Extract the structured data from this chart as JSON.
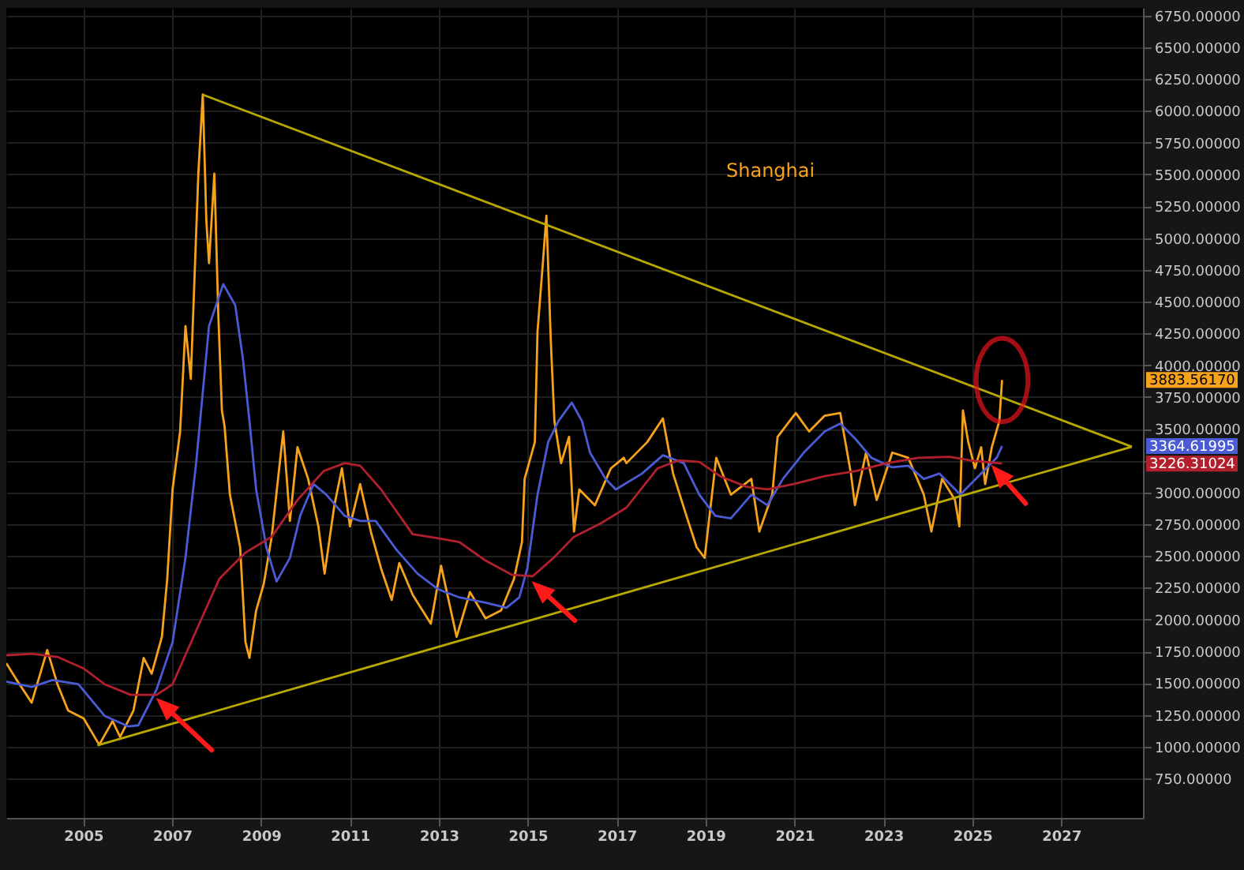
{
  "chart_data": {
    "type": "line",
    "title": "Shanghai",
    "xlim": [
      2003.27,
      2028.84
    ],
    "ylim": [
      440,
      6810
    ],
    "xticks": [
      2005,
      2007,
      2009,
      2011,
      2013,
      2015,
      2017,
      2019,
      2021,
      2023,
      2025,
      2027
    ],
    "yticks": [
      {
        "value": 750,
        "label": "750.00000"
      },
      {
        "value": 1000,
        "label": "1000.00000"
      },
      {
        "value": 1250,
        "label": "1250.00000"
      },
      {
        "value": 1500,
        "label": "1500.00000"
      },
      {
        "value": 1750,
        "label": "1750.00000"
      },
      {
        "value": 2000,
        "label": "2000.00000"
      },
      {
        "value": 2250,
        "label": "2250.00000"
      },
      {
        "value": 2500,
        "label": "2500.00000"
      },
      {
        "value": 2750,
        "label": "2750.00000"
      },
      {
        "value": 3000,
        "label": "3000.00000"
      },
      {
        "value": 3250,
        "label": null
      },
      {
        "value": 3500,
        "label": "3500.00000"
      },
      {
        "value": 3750,
        "label": "3750.00000"
      },
      {
        "value": 4000,
        "label": "4000.00000"
      },
      {
        "value": 4250,
        "label": "4250.00000"
      },
      {
        "value": 4500,
        "label": "4500.00000"
      },
      {
        "value": 4750,
        "label": "4750.00000"
      },
      {
        "value": 5000,
        "label": "5000.00000"
      },
      {
        "value": 5250,
        "label": "5250.00000"
      },
      {
        "value": 5500,
        "label": "5500.00000"
      },
      {
        "value": 5750,
        "label": "5750.00000"
      },
      {
        "value": 6000,
        "label": "6000.00000"
      },
      {
        "value": 6250,
        "label": "6250.00000"
      },
      {
        "value": 6500,
        "label": "6500.00000"
      },
      {
        "value": 6750,
        "label": "6750.00000"
      }
    ],
    "grid": true,
    "series": [
      {
        "color": "#f7a21b",
        "x": [
          2003.27,
          2003.49,
          2003.84,
          2004.19,
          2004.42,
          2004.66,
          2005.01,
          2005.36,
          2005.66,
          2005.83,
          2006.13,
          2006.36,
          2006.54,
          2006.77,
          2006.89,
          2007.01,
          2007.18,
          2007.3,
          2007.42,
          2007.59,
          2007.69,
          2007.77,
          2007.83,
          2007.95,
          2008.04,
          2008.12,
          2008.18,
          2008.3,
          2008.53,
          2008.65,
          2008.74,
          2008.89,
          2009.06,
          2009.24,
          2009.5,
          2009.65,
          2009.82,
          2010.06,
          2010.29,
          2010.43,
          2010.65,
          2010.82,
          2011.0,
          2011.23,
          2011.47,
          2011.7,
          2011.94,
          2012.11,
          2012.41,
          2012.82,
          2013.05,
          2013.4,
          2013.7,
          2014.05,
          2014.4,
          2014.69,
          2014.87,
          2014.93,
          2015.16,
          2015.22,
          2015.34,
          2015.42,
          2015.52,
          2015.6,
          2015.75,
          2015.93,
          2016.04,
          2016.16,
          2016.51,
          2016.87,
          2017.16,
          2017.22,
          2017.69,
          2018.04,
          2018.27,
          2018.57,
          2018.8,
          2018.98,
          2019.24,
          2019.57,
          2020.03,
          2020.21,
          2020.5,
          2020.62,
          2021.03,
          2021.33,
          2021.68,
          2022.03,
          2022.27,
          2022.36,
          2022.61,
          2022.85,
          2023.2,
          2023.56,
          2023.91,
          2024.08,
          2024.32,
          2024.61,
          2024.71,
          2024.79,
          2024.91,
          2025.06,
          2025.2,
          2025.29,
          2025.44,
          2025.61,
          2025.67
        ],
        "values": [
          1657,
          1532,
          1346,
          1760,
          1491,
          1284,
          1222,
          1015,
          1201,
          1077,
          1284,
          1698,
          1574,
          1864,
          2319,
          3023,
          3479,
          4307,
          3893,
          5507,
          6129,
          5135,
          4803,
          5507,
          4389,
          3644,
          3520,
          2982,
          2568,
          1822,
          1698,
          2071,
          2278,
          2651,
          3479,
          2775,
          3355,
          3106,
          2733,
          2361,
          2899,
          3189,
          2733,
          3065,
          2692,
          2402,
          2154,
          2444,
          2195,
          1967,
          2423,
          1864,
          2216,
          2009,
          2071,
          2319,
          2609,
          3106,
          3396,
          4265,
          4803,
          5176,
          4182,
          3561,
          3230,
          3437,
          2692,
          3023,
          2899,
          3189,
          3272,
          3230,
          3396,
          3582,
          3148,
          2816,
          2568,
          2485,
          3272,
          2982,
          3106,
          2692,
          2982,
          3437,
          3624,
          3479,
          3603,
          3624,
          3148,
          2899,
          3313,
          2940,
          3313,
          3272,
          2982,
          2692,
          3106,
          2940,
          2733,
          3644,
          3396,
          3189,
          3355,
          3065,
          3355,
          3562,
          3883.5617
        ]
      },
      {
        "color": "#4a5bd4",
        "x": [
          2003.27,
          2003.84,
          2004.31,
          2004.89,
          2005.48,
          2006.01,
          2006.24,
          2006.65,
          2007.01,
          2007.3,
          2007.54,
          2007.83,
          2008.15,
          2008.42,
          2008.59,
          2008.74,
          2008.89,
          2009.12,
          2009.35,
          2009.65,
          2009.88,
          2010.18,
          2010.47,
          2010.88,
          2011.23,
          2011.58,
          2012.05,
          2012.52,
          2012.99,
          2013.46,
          2014.05,
          2014.52,
          2014.81,
          2014.99,
          2015.22,
          2015.46,
          2015.69,
          2015.99,
          2016.22,
          2016.4,
          2016.75,
          2016.98,
          2017.57,
          2018.04,
          2018.51,
          2018.86,
          2019.22,
          2019.57,
          2020.03,
          2020.39,
          2020.74,
          2021.21,
          2021.68,
          2022.03,
          2022.38,
          2022.73,
          2023.2,
          2023.56,
          2023.91,
          2024.26,
          2024.73,
          2025.2,
          2025.55,
          2025.67
        ],
        "values": [
          1512,
          1470,
          1524,
          1491,
          1243,
          1160,
          1168,
          1450,
          1822,
          2485,
          3230,
          4307,
          4638,
          4472,
          4058,
          3561,
          3023,
          2568,
          2299,
          2485,
          2816,
          3065,
          2982,
          2816,
          2775,
          2775,
          2547,
          2361,
          2237,
          2174,
          2133,
          2092,
          2174,
          2402,
          2982,
          3396,
          3561,
          3706,
          3561,
          3313,
          3106,
          3023,
          3148,
          3292,
          3230,
          2982,
          2816,
          2795,
          2982,
          2899,
          3106,
          3313,
          3479,
          3541,
          3417,
          3272,
          3197,
          3210,
          3106,
          3148,
          2982,
          3148,
          3272,
          3364.61995
        ]
      },
      {
        "color": "#b2202e",
        "x": [
          2003.27,
          2003.84,
          2004.42,
          2005.01,
          2005.48,
          2006.07,
          2006.65,
          2007.01,
          2007.48,
          2008.06,
          2008.65,
          2009.24,
          2009.82,
          2010.41,
          2010.88,
          2011.23,
          2011.7,
          2012.41,
          2012.99,
          2013.46,
          2014.05,
          2014.64,
          2015.11,
          2015.58,
          2016.04,
          2016.63,
          2017.22,
          2017.92,
          2018.39,
          2018.86,
          2019.33,
          2019.92,
          2020.39,
          2020.98,
          2021.68,
          2022.38,
          2023.08,
          2023.79,
          2024.49,
          2024.96,
          2025.67
        ],
        "values": [
          1719,
          1731,
          1706,
          1615,
          1491,
          1408,
          1408,
          1491,
          1864,
          2319,
          2526,
          2651,
          2940,
          3168,
          3230,
          3210,
          3023,
          2671,
          2638,
          2609,
          2464,
          2352,
          2340,
          2485,
          2651,
          2754,
          2880,
          3189,
          3251,
          3239,
          3127,
          3044,
          3023,
          3065,
          3127,
          3168,
          3230,
          3272,
          3280,
          3251,
          3226.31024
        ]
      },
      {
        "type": "line",
        "color": "#b8a800",
        "x": [
          2007.68,
          2028.59
        ],
        "values": [
          6129,
          3359
        ]
      },
      {
        "type": "line",
        "color": "#b8a800",
        "x": [
          2005.32,
          2028.59
        ],
        "values": [
          1011,
          3359
        ]
      }
    ],
    "annotations": [
      "3883.56170",
      "3364.61995",
      "3226.31024"
    ]
  }
}
